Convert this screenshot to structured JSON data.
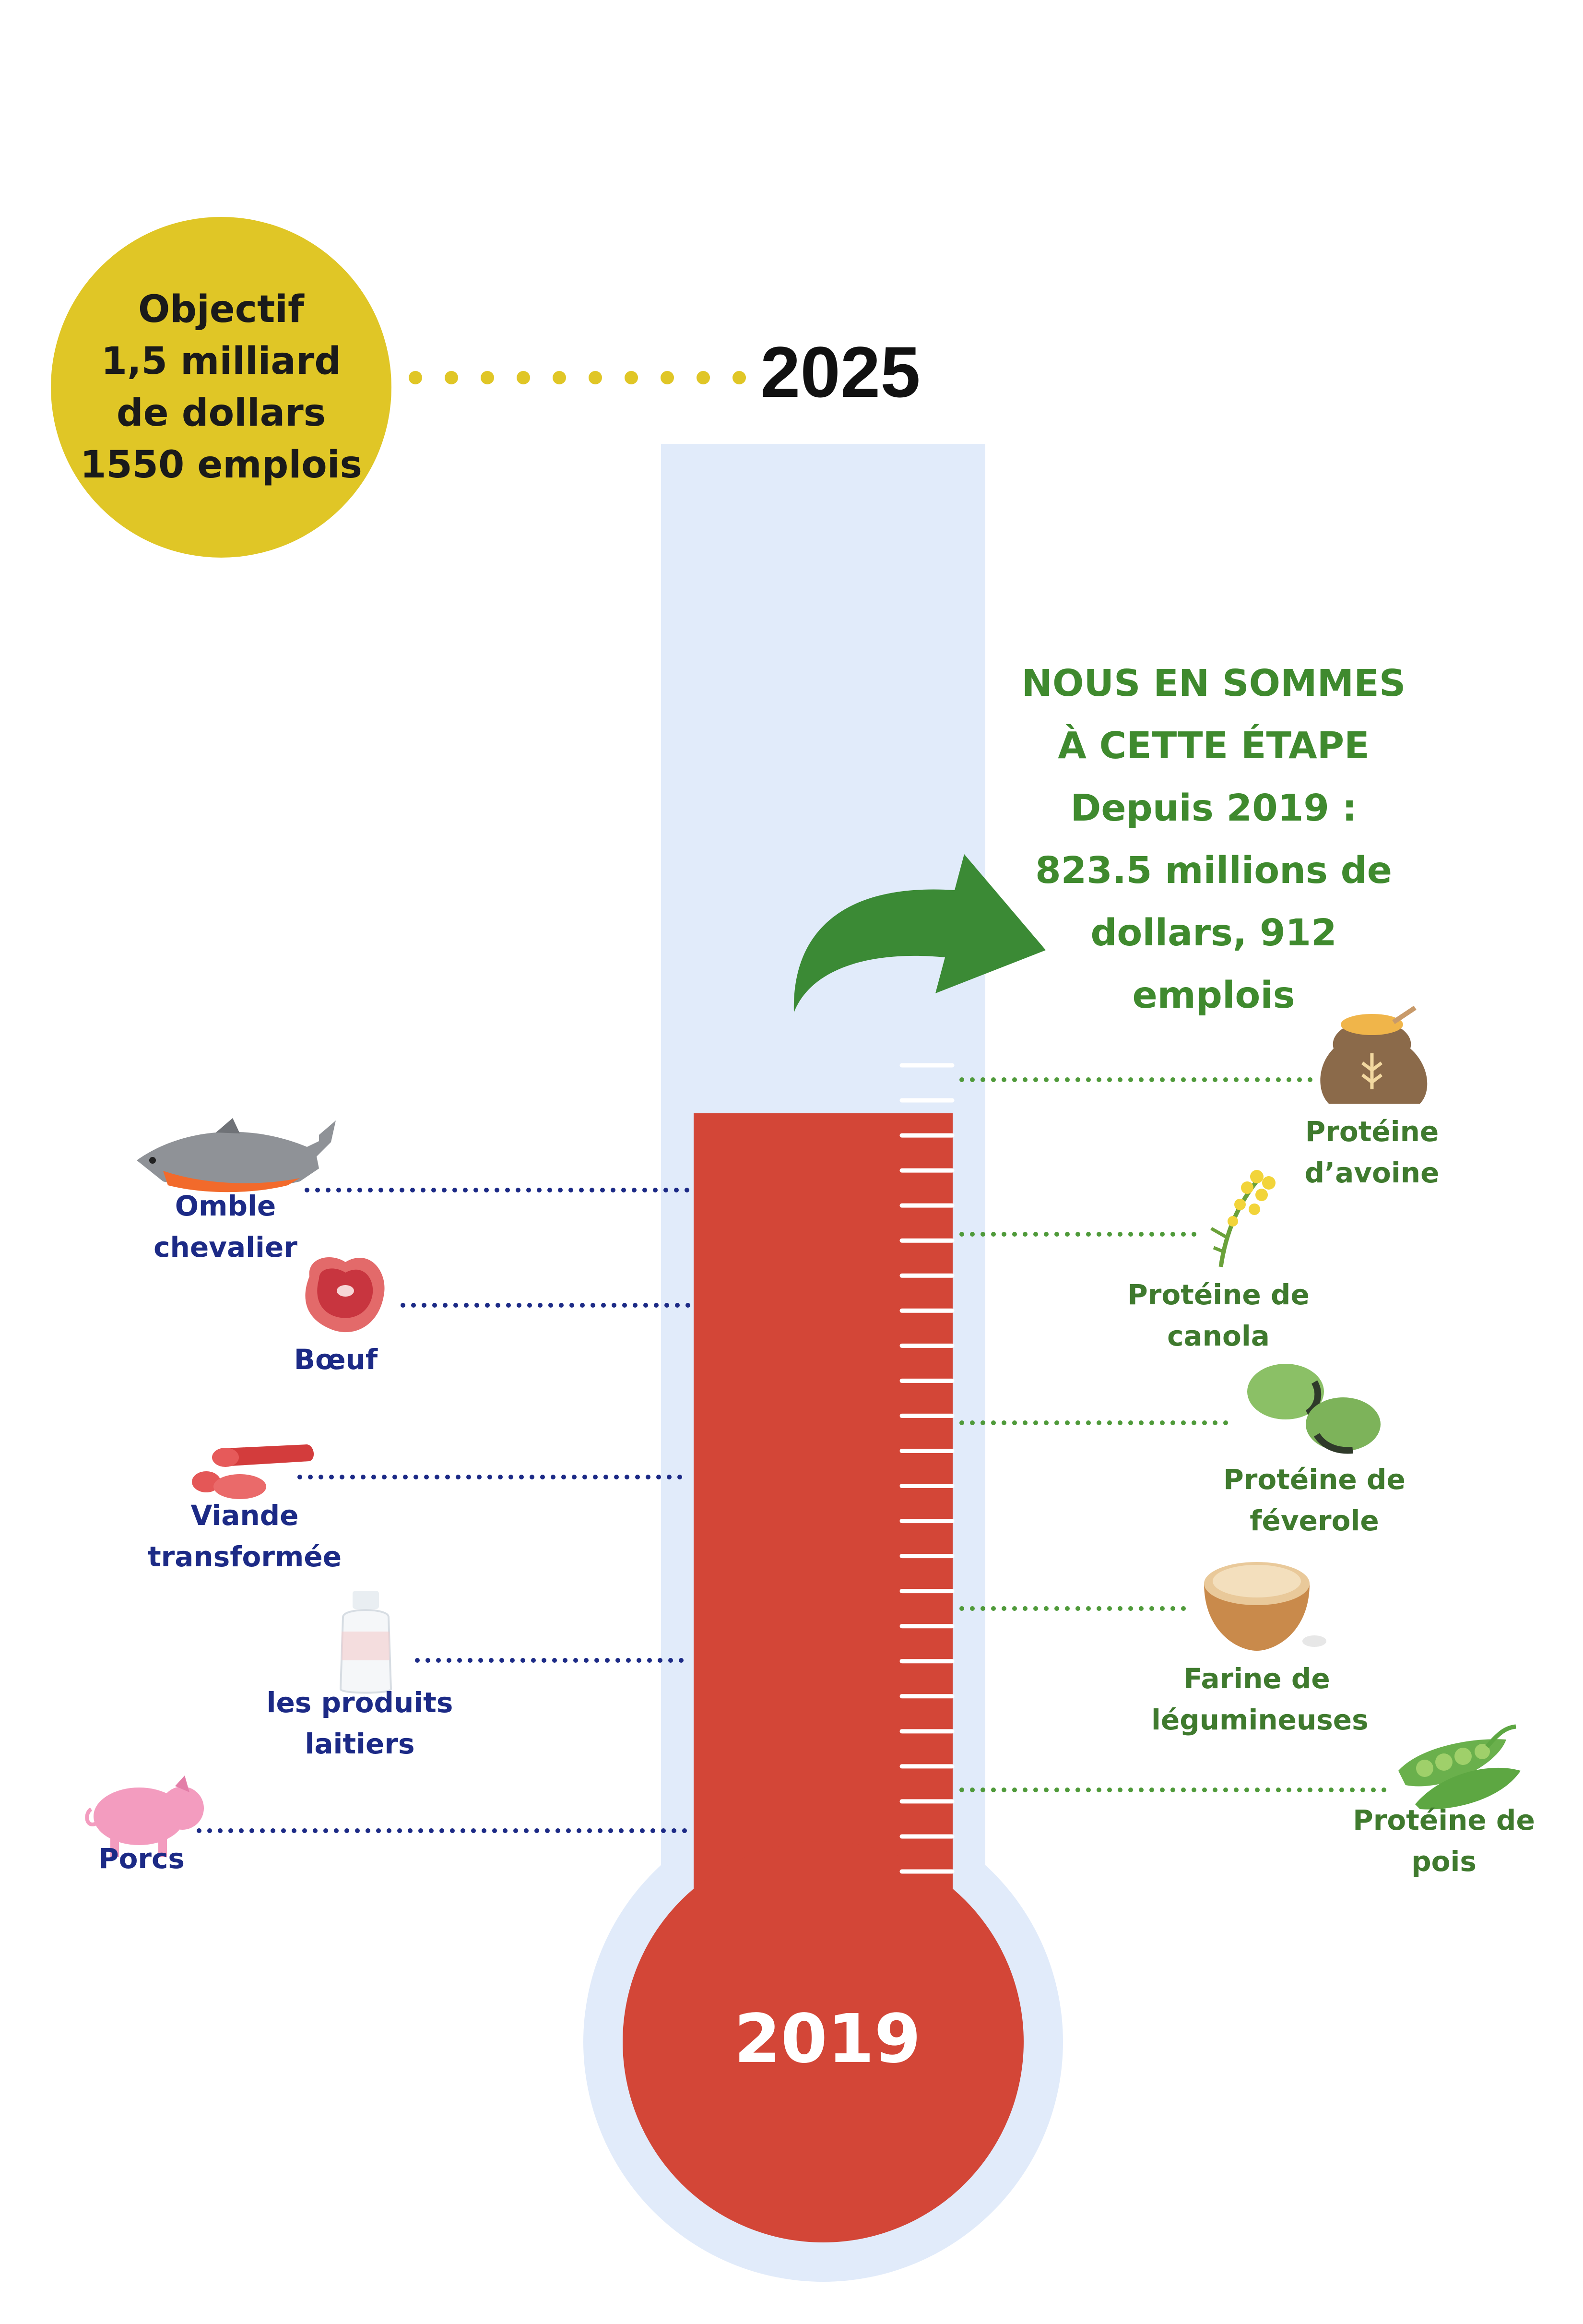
{
  "goal": {
    "lines": [
      "Objectif",
      "1,5 milliard",
      "de dollars",
      "1550 emplois"
    ],
    "year": "2025"
  },
  "status": {
    "lines": [
      "NOUS EN SOMMES",
      "À CETTE ÉTAPE",
      "Depuis 2019 :",
      "823.5 millions de",
      "dollars, 912",
      "emplois"
    ]
  },
  "start_year": "2019",
  "progress_fraction": 0.55,
  "left_items": [
    {
      "lines": [
        "Omble",
        "chevalier"
      ],
      "icon": "fish-icon"
    },
    {
      "lines": [
        "Bœuf"
      ],
      "icon": "steak-icon"
    },
    {
      "lines": [
        "Viande",
        "transformée"
      ],
      "icon": "sausage-icon"
    },
    {
      "lines": [
        "les produits",
        "laitiers"
      ],
      "icon": "milk-bottle-icon"
    },
    {
      "lines": [
        "Porcs"
      ],
      "icon": "pig-icon"
    }
  ],
  "right_items": [
    {
      "lines": [
        "Protéine",
        "d’avoine"
      ],
      "icon": "oat-sack-icon"
    },
    {
      "lines": [
        "Protéine de",
        "canola"
      ],
      "icon": "canola-flower-icon"
    },
    {
      "lines": [
        "Protéine de",
        "féverole"
      ],
      "icon": "faba-bean-icon"
    },
    {
      "lines": [
        "Farine de",
        "légumineuses"
      ],
      "icon": "flour-bowl-icon"
    },
    {
      "lines": [
        "Protéine de",
        "pois"
      ],
      "icon": "pea-pod-icon"
    }
  ],
  "colors": {
    "goal_circle": "#e0c626",
    "thermometer_bg": "#e1ebfa",
    "mercury": "#d34637",
    "status_green": "#3f8a2e",
    "left_label_blue": "#1c2a86",
    "right_label_green": "#3f7a2e"
  }
}
